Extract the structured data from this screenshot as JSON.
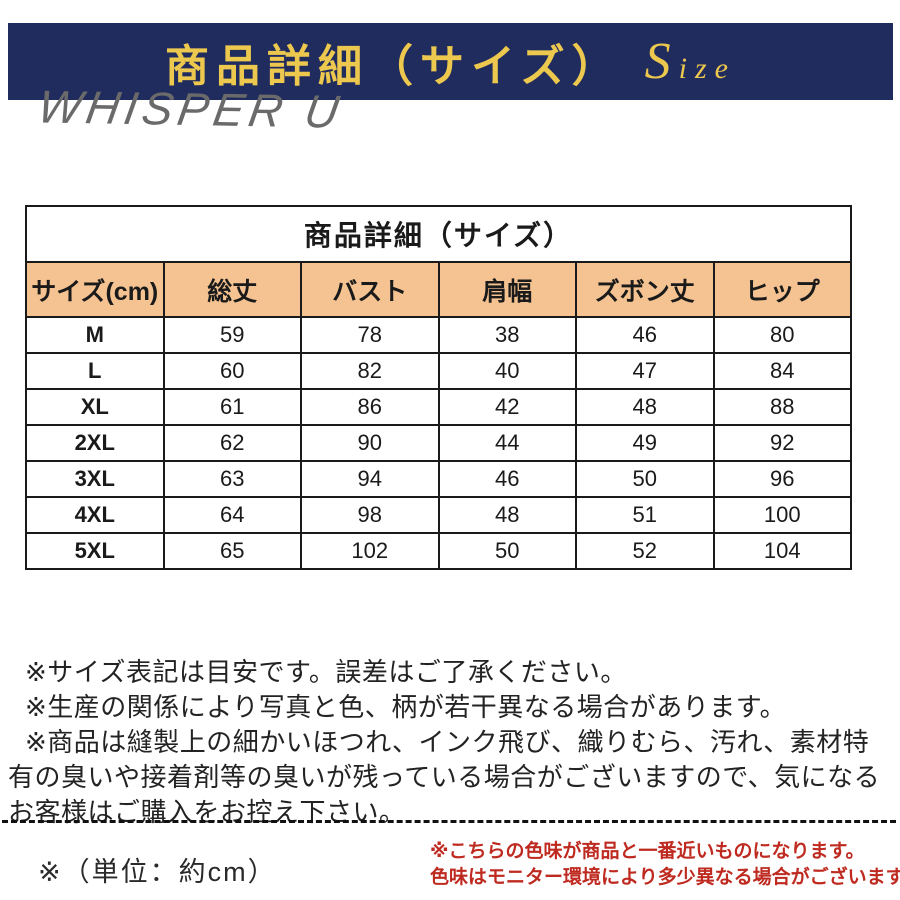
{
  "banner": {
    "title": "商品詳細（サイズ）",
    "size_label": "Size"
  },
  "watermark": "WHISPER U",
  "size_table": {
    "title": "商品詳細（サイズ）",
    "columns": [
      "サイズ(cm)",
      "総丈",
      "バスト",
      "肩幅",
      "ズボン丈",
      "ヒップ"
    ],
    "rows": [
      {
        "size": "M",
        "values": [
          "59",
          "78",
          "38",
          "46",
          "80"
        ]
      },
      {
        "size": "L",
        "values": [
          "60",
          "82",
          "40",
          "47",
          "84"
        ]
      },
      {
        "size": "XL",
        "values": [
          "61",
          "86",
          "42",
          "48",
          "88"
        ]
      },
      {
        "size": "2XL",
        "values": [
          "62",
          "90",
          "44",
          "49",
          "92"
        ]
      },
      {
        "size": "3XL",
        "values": [
          "63",
          "94",
          "46",
          "50",
          "96"
        ]
      },
      {
        "size": "4XL",
        "values": [
          "64",
          "98",
          "48",
          "51",
          "100"
        ]
      },
      {
        "size": "5XL",
        "values": [
          "65",
          "102",
          "50",
          "52",
          "104"
        ]
      }
    ]
  },
  "notes": [
    "※サイズ表記は目安です。誤差はご了承ください。",
    "※生産の関係により写真と色、柄が若干異なる場合があります。",
    "※商品は縫製上の細かいほつれ、インク飛び、織りむら、汚れ、素材特有の臭いや接着剤等の臭いが残っている場合がございますので、気になるお客様はご購入をお控え下さい。"
  ],
  "footer": {
    "unit_note": "※（単位：約cm）",
    "color_notes": [
      "※こちらの色味が商品と一番近いものになります。",
      "色味はモニター環境により多少異なる場合がございます。"
    ]
  },
  "colors": {
    "banner_navy": "#212c5e",
    "banner_gold": "#ecc84e",
    "table_header_orange": "#f5c391",
    "disclaimer_red": "#bf2a20",
    "watermark_gray": "#6a6a6a"
  }
}
